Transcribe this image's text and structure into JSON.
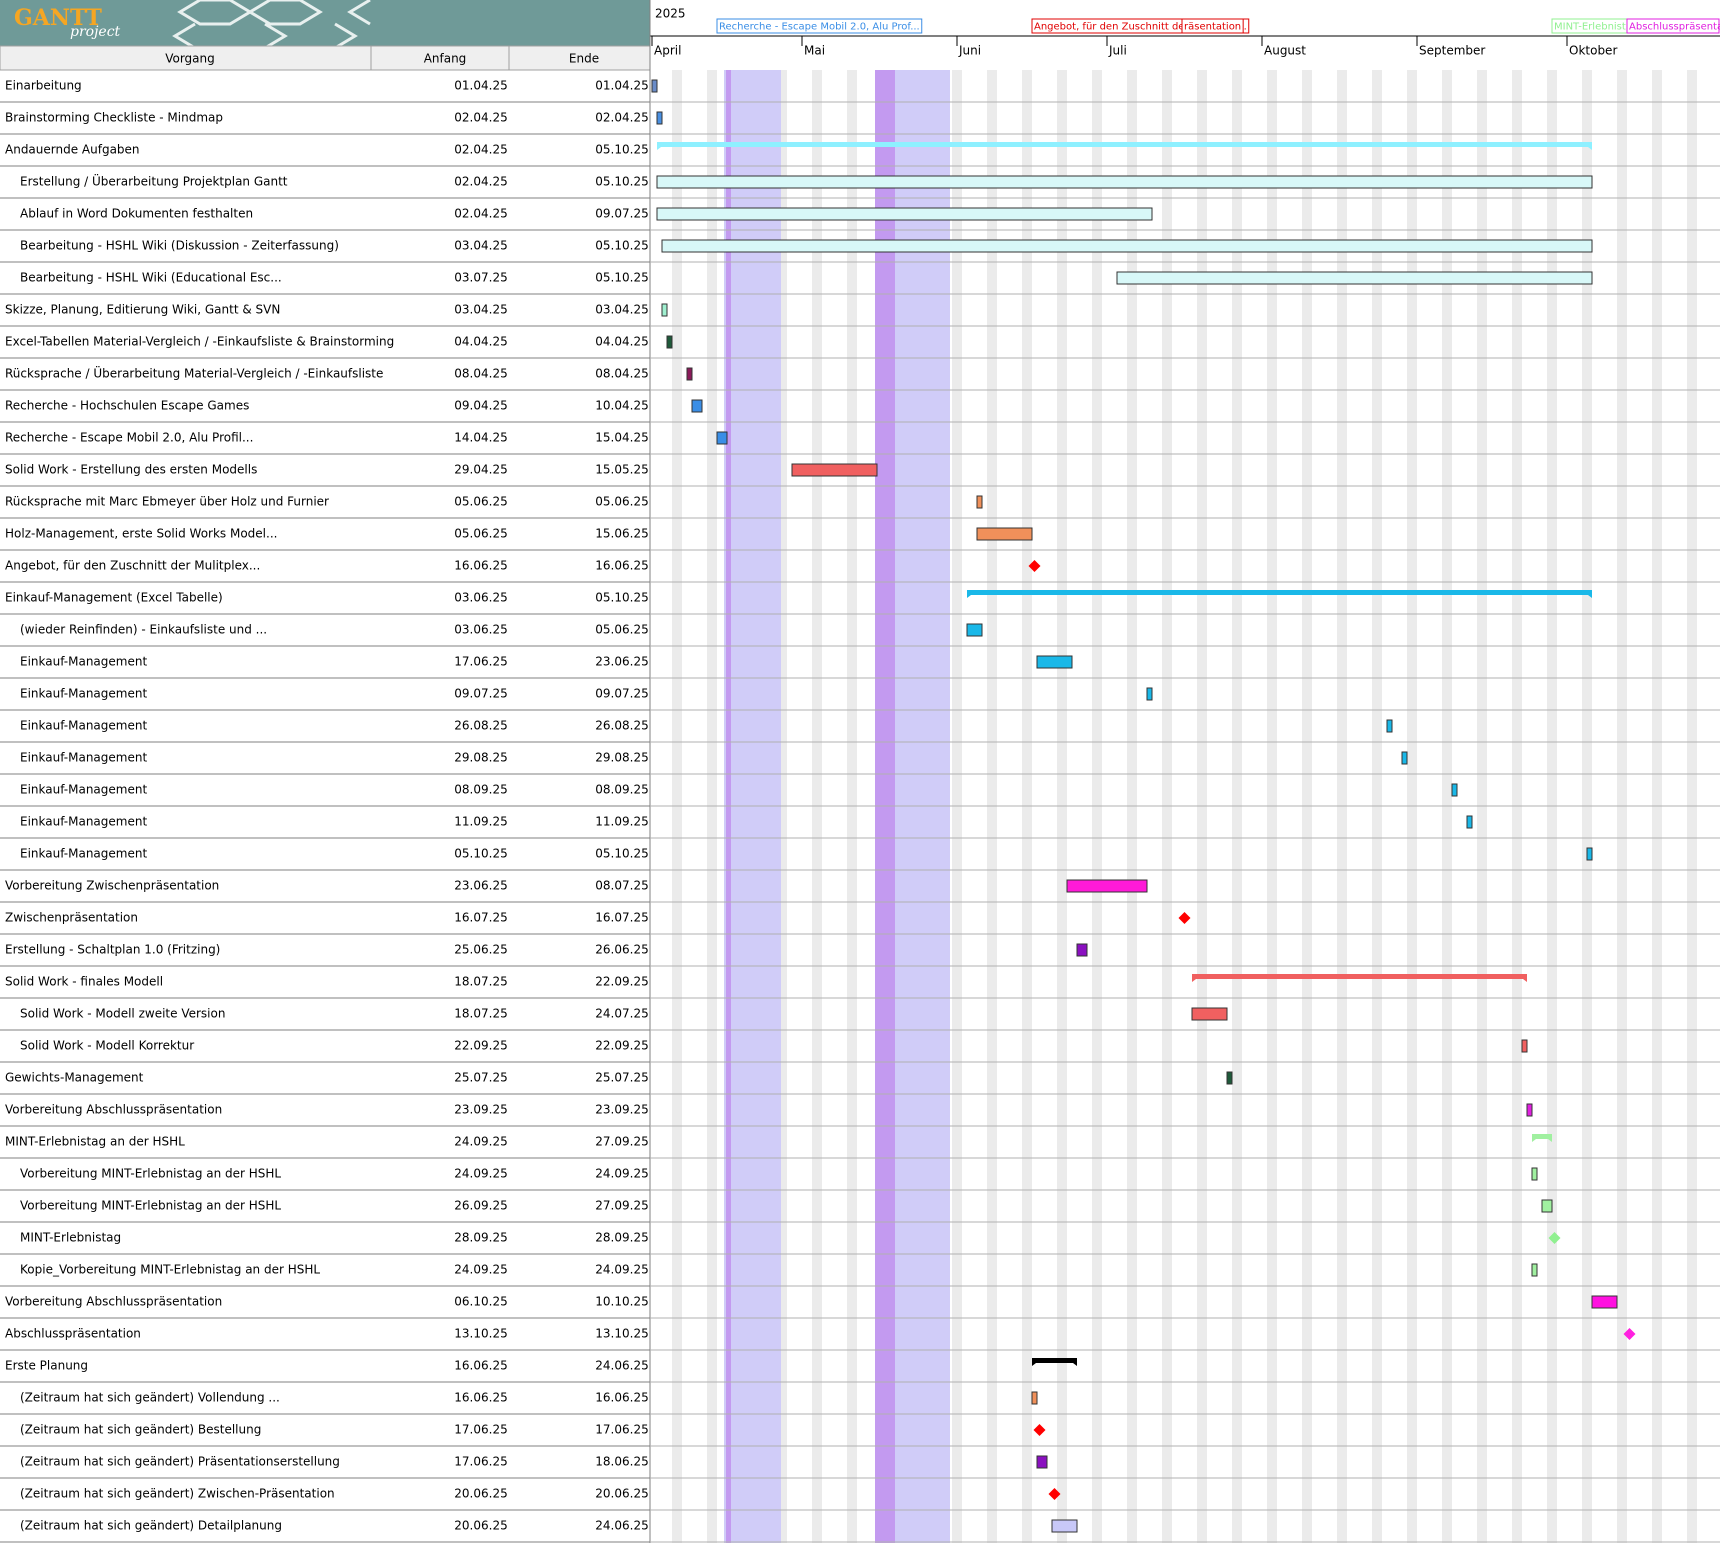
{
  "chart_data": {
    "type": "gantt",
    "logo": "GANTT",
    "logo_sub": "project",
    "columns": [
      "Vorgang",
      "Anfang",
      "Ende"
    ],
    "year": "2025",
    "months": [
      {
        "value": "2025-04-01",
        "label": "April"
      },
      {
        "value": "2025-05-01",
        "label": "Mai"
      },
      {
        "value": "2025-06-01",
        "label": "Juni"
      },
      {
        "value": "2025-07-01",
        "label": "Juli"
      },
      {
        "value": "2025-08-01",
        "label": "August"
      },
      {
        "value": "2025-09-01",
        "label": "September"
      },
      {
        "value": "2025-10-01",
        "label": "Oktober"
      }
    ],
    "timeline_labels": [
      {
        "text": "Recherche - Escape Mobil 2.0, Alu Prof...",
        "date": "14.04.25",
        "color": "#3a8ee6"
      },
      {
        "text": "Angebot, für den Zuschnitt der Mulitplex...",
        "date": "16.06.25",
        "color": "#e00000"
      },
      {
        "text": "räsentation",
        "date": "16.07.25",
        "color": "#e00000"
      },
      {
        "text": "MINT-Erlebnist...",
        "date": "28.09.25",
        "color": "#90f090"
      },
      {
        "text": "Abschlusspräsentati...",
        "date": "13.10.25",
        "color": "#e020e0"
      }
    ],
    "tasks": [
      {
        "name": "Einarbeitung",
        "start": "01.04.25",
        "end": "01.04.25",
        "kind": "task",
        "level": 0,
        "color": "#6a8cc8"
      },
      {
        "name": "Brainstorming Checkliste - Mindmap",
        "start": "02.04.25",
        "end": "02.04.25",
        "kind": "task",
        "level": 0,
        "color": "#4a90e2"
      },
      {
        "name": "Andauernde Aufgaben",
        "start": "02.04.25",
        "end": "05.10.25",
        "kind": "summary",
        "level": 0,
        "color": "#8ef0ff"
      },
      {
        "name": "Erstellung / Überarbeitung Projektplan Gantt",
        "start": "02.04.25",
        "end": "05.10.25",
        "kind": "task",
        "level": 1,
        "color": "#d8f8f8"
      },
      {
        "name": "Ablauf in Word Dokumenten festhalten",
        "start": "02.04.25",
        "end": "09.07.25",
        "kind": "task",
        "level": 1,
        "color": "#d8f8f8"
      },
      {
        "name": "Bearbeitung - HSHL Wiki (Diskussion - Zeiterfassung)",
        "start": "03.04.25",
        "end": "05.10.25",
        "kind": "task",
        "level": 1,
        "color": "#d8f8f8"
      },
      {
        "name": "Bearbeitung - HSHL Wiki (Educational Esc...",
        "start": "03.07.25",
        "end": "05.10.25",
        "kind": "task",
        "level": 1,
        "color": "#d8f8f8"
      },
      {
        "name": "Skizze, Planung, Editierung Wiki, Gantt & SVN",
        "start": "03.04.25",
        "end": "03.04.25",
        "kind": "task",
        "level": 0,
        "color": "#a0f0d0"
      },
      {
        "name": "Excel-Tabellen Material-Vergleich / -Einkaufsliste & Brainstorming",
        "start": "04.04.25",
        "end": "04.04.25",
        "kind": "task",
        "level": 0,
        "color": "#1e5a3a"
      },
      {
        "name": "Rücksprache / Überarbeitung Material-Vergleich / -Einkaufsliste",
        "start": "08.04.25",
        "end": "08.04.25",
        "kind": "task",
        "level": 0,
        "color": "#8b1a5a"
      },
      {
        "name": "Recherche - Hochschulen Escape Games",
        "start": "09.04.25",
        "end": "10.04.25",
        "kind": "task",
        "level": 0,
        "color": "#3a8ee6"
      },
      {
        "name": "Recherche - Escape Mobil 2.0, Alu Profil...",
        "start": "14.04.25",
        "end": "15.04.25",
        "kind": "task",
        "level": 0,
        "color": "#3a8ee6"
      },
      {
        "name": "Solid Work - Erstellung des ersten Modells",
        "start": "29.04.25",
        "end": "15.05.25",
        "kind": "task",
        "level": 0,
        "color": "#f06060"
      },
      {
        "name": "Rücksprache mit Marc Ebmeyer über Holz und Furnier",
        "start": "05.06.25",
        "end": "05.06.25",
        "kind": "task",
        "level": 0,
        "color": "#f0905a"
      },
      {
        "name": "Holz-Management, erste Solid Works Model...",
        "start": "05.06.25",
        "end": "15.06.25",
        "kind": "task",
        "level": 0,
        "color": "#f0905a"
      },
      {
        "name": "Angebot, für den Zuschnitt der Mulitplex...",
        "start": "16.06.25",
        "end": "16.06.25",
        "kind": "milestone",
        "level": 0,
        "color": "#ff0000"
      },
      {
        "name": "Einkauf-Management (Excel Tabelle)",
        "start": "03.06.25",
        "end": "05.10.25",
        "kind": "summary",
        "level": 0,
        "color": "#1ab8e8"
      },
      {
        "name": "(wieder Reinfinden) - Einkaufsliste und ...",
        "start": "03.06.25",
        "end": "05.06.25",
        "kind": "task",
        "level": 1,
        "color": "#1ab8e8"
      },
      {
        "name": "Einkauf-Management",
        "start": "17.06.25",
        "end": "23.06.25",
        "kind": "task",
        "level": 1,
        "color": "#1ab8e8"
      },
      {
        "name": "Einkauf-Management",
        "start": "09.07.25",
        "end": "09.07.25",
        "kind": "task",
        "level": 1,
        "color": "#1ab8e8"
      },
      {
        "name": "Einkauf-Management",
        "start": "26.08.25",
        "end": "26.08.25",
        "kind": "task",
        "level": 1,
        "color": "#1ab8e8"
      },
      {
        "name": "Einkauf-Management",
        "start": "29.08.25",
        "end": "29.08.25",
        "kind": "task",
        "level": 1,
        "color": "#1ab8e8"
      },
      {
        "name": "Einkauf-Management",
        "start": "08.09.25",
        "end": "08.09.25",
        "kind": "task",
        "level": 1,
        "color": "#1ab8e8"
      },
      {
        "name": "Einkauf-Management",
        "start": "11.09.25",
        "end": "11.09.25",
        "kind": "task",
        "level": 1,
        "color": "#1ab8e8"
      },
      {
        "name": "Einkauf-Management",
        "start": "05.10.25",
        "end": "05.10.25",
        "kind": "task",
        "level": 1,
        "color": "#1ab8e8"
      },
      {
        "name": "Vorbereitung Zwischenpräsentation",
        "start": "23.06.25",
        "end": "08.07.25",
        "kind": "task",
        "level": 0,
        "color": "#ff1ad8"
      },
      {
        "name": "Zwischenpräsentation",
        "start": "16.07.25",
        "end": "16.07.25",
        "kind": "milestone",
        "level": 0,
        "color": "#ff0000"
      },
      {
        "name": "Erstellung - Schaltplan 1.0 (Fritzing)",
        "start": "25.06.25",
        "end": "26.06.25",
        "kind": "task",
        "level": 0,
        "color": "#8a10c0"
      },
      {
        "name": "Solid Work - finales Modell",
        "start": "18.07.25",
        "end": "22.09.25",
        "kind": "summary",
        "level": 0,
        "color": "#f06060"
      },
      {
        "name": "Solid Work - Modell zweite Version",
        "start": "18.07.25",
        "end": "24.07.25",
        "kind": "task",
        "level": 1,
        "color": "#f06060"
      },
      {
        "name": "Solid Work - Modell Korrektur",
        "start": "22.09.25",
        "end": "22.09.25",
        "kind": "task",
        "level": 1,
        "color": "#f06060"
      },
      {
        "name": "Gewichts-Management",
        "start": "25.07.25",
        "end": "25.07.25",
        "kind": "task",
        "level": 0,
        "color": "#1e5a3a"
      },
      {
        "name": "Vorbereitung Abschlusspräsentation",
        "start": "23.09.25",
        "end": "23.09.25",
        "kind": "task",
        "level": 0,
        "color": "#e020e0"
      },
      {
        "name": "MINT-Erlebnistag an der HSHL",
        "start": "24.09.25",
        "end": "27.09.25",
        "kind": "summary",
        "level": 0,
        "color": "#a0f0a0"
      },
      {
        "name": "Vorbereitung MINT-Erlebnistag an der HSHL",
        "start": "24.09.25",
        "end": "24.09.25",
        "kind": "task",
        "level": 1,
        "color": "#a0f0a0"
      },
      {
        "name": "Vorbereitung MINT-Erlebnistag an der HSHL",
        "start": "26.09.25",
        "end": "27.09.25",
        "kind": "task",
        "level": 1,
        "color": "#a0f0a0"
      },
      {
        "name": "MINT-Erlebnistag",
        "start": "28.09.25",
        "end": "28.09.25",
        "kind": "milestone",
        "level": 1,
        "color": "#90f090"
      },
      {
        "name": "Kopie_Vorbereitung MINT-Erlebnistag an der HSHL",
        "start": "24.09.25",
        "end": "24.09.25",
        "kind": "task",
        "level": 1,
        "color": "#a0f0a0"
      },
      {
        "name": "Vorbereitung Abschlusspräsentation",
        "start": "06.10.25",
        "end": "10.10.25",
        "kind": "task",
        "level": 0,
        "color": "#ff10e0"
      },
      {
        "name": "Abschlusspräsentation",
        "start": "13.10.25",
        "end": "13.10.25",
        "kind": "milestone",
        "level": 0,
        "color": "#ff20e0"
      },
      {
        "name": "Erste Planung",
        "start": "16.06.25",
        "end": "24.06.25",
        "kind": "summary",
        "level": 0,
        "color": "#000000"
      },
      {
        "name": "(Zeitraum hat sich geändert) Vollendung ...",
        "start": "16.06.25",
        "end": "16.06.25",
        "kind": "task",
        "level": 1,
        "color": "#f0905a"
      },
      {
        "name": "(Zeitraum hat sich geändert) Bestellung",
        "start": "17.06.25",
        "end": "17.06.25",
        "kind": "milestone",
        "level": 1,
        "color": "#ff0000"
      },
      {
        "name": "(Zeitraum hat sich geändert) Präsentationserstellung",
        "start": "17.06.25",
        "end": "18.06.25",
        "kind": "task",
        "level": 1,
        "color": "#8a10c0"
      },
      {
        "name": "(Zeitraum hat sich geändert) Zwischen-Präsentation",
        "start": "20.06.25",
        "end": "20.06.25",
        "kind": "milestone",
        "level": 1,
        "color": "#ff0000"
      },
      {
        "name": "(Zeitraum hat sich geändert) Detailplanung",
        "start": "20.06.25",
        "end": "24.06.25",
        "kind": "task",
        "level": 1,
        "color": "#c8c8f8"
      }
    ]
  }
}
